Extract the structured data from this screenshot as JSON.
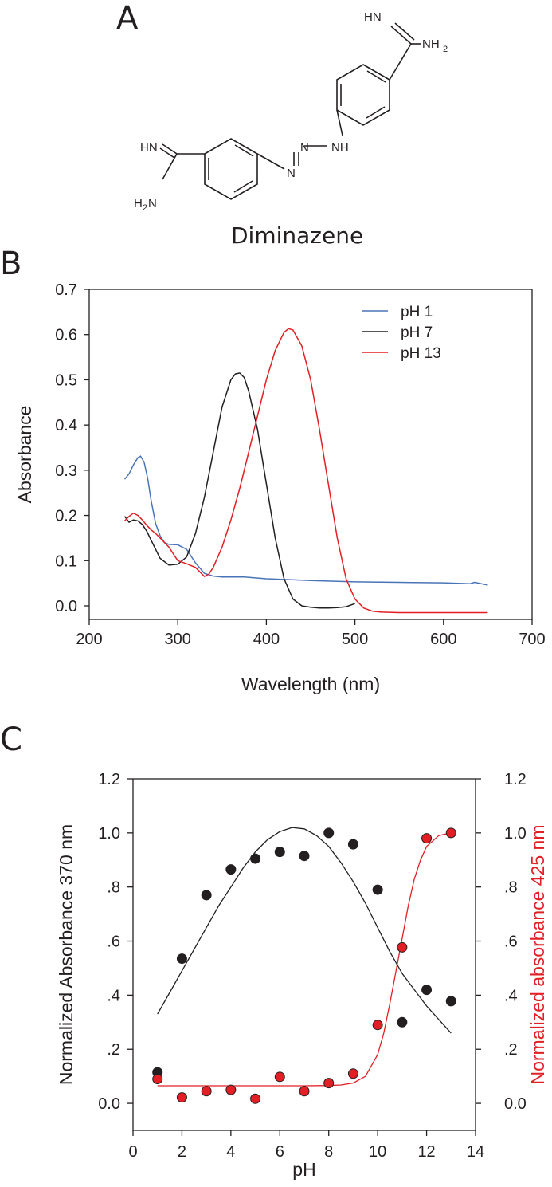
{
  "panels": {
    "a": "A",
    "b": "B",
    "c": "C"
  },
  "molecule": {
    "name": "Diminazene",
    "atoms": {
      "top_imine": "HN",
      "top_amine_n": "NH",
      "top_amine_sub": "2",
      "left_imine": "HN",
      "left_amine_h": "H",
      "left_amine_sub": "2",
      "left_amine_n": "N",
      "azo_n1": "N",
      "azo_n2": "N",
      "bridge_nh": "NH"
    }
  },
  "chart_data": [
    {
      "type": "line",
      "title": "",
      "xlabel": "Wavelength (nm)",
      "ylabel": "Absorbance",
      "xlim": [
        200,
        700
      ],
      "ylim": [
        -0.03,
        0.7
      ],
      "xticks": [
        200,
        300,
        400,
        500,
        600,
        700
      ],
      "yticks": [
        0.0,
        0.1,
        0.2,
        0.3,
        0.4,
        0.5,
        0.6,
        0.7
      ],
      "ytick_labels": [
        "0.0",
        "0.1",
        "0.2",
        "0.3",
        "0.4",
        "0.5",
        "0.6",
        "0.7"
      ],
      "grid": false,
      "legend_position": "top-right",
      "series": [
        {
          "name": "pH 1",
          "color": "#4a74b8",
          "x": [
            240,
            245,
            250,
            255,
            258,
            262,
            266,
            270,
            275,
            280,
            285,
            290,
            300,
            310,
            320,
            330,
            340,
            350,
            375,
            400,
            450,
            500,
            550,
            600,
            630,
            635,
            640,
            650
          ],
          "y": [
            0.28,
            0.292,
            0.312,
            0.328,
            0.331,
            0.318,
            0.282,
            0.232,
            0.182,
            0.155,
            0.14,
            0.136,
            0.135,
            0.125,
            0.095,
            0.072,
            0.066,
            0.064,
            0.064,
            0.06,
            0.056,
            0.053,
            0.052,
            0.051,
            0.049,
            0.052,
            0.05,
            0.046
          ]
        },
        {
          "name": "pH 7",
          "color": "#231f20",
          "x": [
            240,
            245,
            250,
            255,
            260,
            265,
            270,
            275,
            280,
            290,
            300,
            310,
            320,
            330,
            340,
            350,
            360,
            365,
            370,
            375,
            380,
            390,
            400,
            410,
            420,
            430,
            440,
            450,
            460,
            470,
            480,
            490,
            500
          ],
          "y": [
            0.198,
            0.185,
            0.19,
            0.188,
            0.18,
            0.165,
            0.145,
            0.125,
            0.105,
            0.09,
            0.092,
            0.108,
            0.16,
            0.24,
            0.34,
            0.44,
            0.5,
            0.513,
            0.515,
            0.505,
            0.475,
            0.39,
            0.27,
            0.15,
            0.06,
            0.015,
            0.0,
            -0.003,
            -0.005,
            -0.005,
            -0.004,
            -0.002,
            0.005
          ]
        },
        {
          "name": "pH 13",
          "color": "#e31e24",
          "x": [
            240,
            245,
            250,
            255,
            260,
            265,
            270,
            275,
            280,
            290,
            300,
            310,
            320,
            330,
            335,
            340,
            350,
            360,
            370,
            380,
            390,
            400,
            410,
            420,
            425,
            430,
            440,
            450,
            460,
            470,
            480,
            490,
            500,
            510,
            520,
            530,
            550,
            600,
            650
          ],
          "y": [
            0.188,
            0.198,
            0.205,
            0.2,
            0.19,
            0.178,
            0.168,
            0.16,
            0.15,
            0.13,
            0.1,
            0.093,
            0.085,
            0.065,
            0.07,
            0.085,
            0.13,
            0.19,
            0.26,
            0.34,
            0.42,
            0.5,
            0.565,
            0.605,
            0.613,
            0.61,
            0.575,
            0.5,
            0.39,
            0.27,
            0.15,
            0.06,
            0.015,
            -0.005,
            -0.012,
            -0.014,
            -0.015,
            -0.015,
            -0.015
          ]
        }
      ]
    },
    {
      "type": "scatter",
      "title": "",
      "xlabel": "pH",
      "ylabel": "Normalized Absorbance 370 nm",
      "y2label": "Normalized absorbance 425 nm",
      "xlim": [
        0,
        14
      ],
      "ylim": [
        -0.1,
        1.2
      ],
      "y2lim": [
        -0.1,
        1.2
      ],
      "xticks": [
        0,
        2,
        4,
        6,
        8,
        10,
        12,
        14
      ],
      "yticks": [
        0.0,
        0.2,
        0.4,
        0.6,
        0.8,
        1.0,
        1.2
      ],
      "ytick_labels": [
        "0.0",
        ".2",
        ".4",
        ".6",
        ".8",
        "1.0",
        "1.2"
      ],
      "grid": false,
      "series": [
        {
          "name": "370 nm points",
          "axis": "left",
          "color": "#231f20",
          "x": [
            1,
            2,
            3,
            4,
            5,
            6,
            7,
            8,
            9,
            10,
            11,
            12,
            13
          ],
          "y": [
            0.115,
            0.535,
            0.77,
            0.865,
            0.905,
            0.93,
            0.915,
            1.0,
            0.958,
            0.79,
            0.3,
            0.42,
            0.378
          ]
        },
        {
          "name": "370 nm fit",
          "axis": "left",
          "color": "#231f20",
          "x": [
            1,
            1.5,
            2,
            2.5,
            3,
            3.5,
            4,
            4.5,
            5,
            5.5,
            6,
            6.5,
            7,
            7.5,
            8,
            8.5,
            9,
            9.5,
            10,
            10.5,
            11,
            11.5,
            12,
            12.5,
            13
          ],
          "y": [
            0.33,
            0.41,
            0.49,
            0.57,
            0.65,
            0.73,
            0.8,
            0.87,
            0.93,
            0.975,
            1.005,
            1.02,
            1.015,
            0.99,
            0.95,
            0.89,
            0.82,
            0.74,
            0.65,
            0.56,
            0.48,
            0.42,
            0.36,
            0.31,
            0.26
          ]
        },
        {
          "name": "425 nm points",
          "axis": "right",
          "color": "#e31e24",
          "x": [
            1,
            2,
            3,
            4,
            5,
            6,
            7,
            8,
            9,
            10,
            11,
            12,
            13
          ],
          "y": [
            0.09,
            0.022,
            0.045,
            0.05,
            0.017,
            0.098,
            0.045,
            0.075,
            0.11,
            0.29,
            0.577,
            0.98,
            1.0
          ]
        },
        {
          "name": "425 nm fit",
          "axis": "right",
          "color": "#e31e24",
          "x": [
            1,
            2,
            3,
            4,
            5,
            6,
            7,
            8,
            8.5,
            9,
            9.5,
            10,
            10.25,
            10.5,
            10.75,
            11,
            11.25,
            11.5,
            11.75,
            12,
            12.5,
            13
          ],
          "y": [
            0.065,
            0.065,
            0.065,
            0.065,
            0.065,
            0.065,
            0.065,
            0.066,
            0.068,
            0.075,
            0.1,
            0.18,
            0.26,
            0.37,
            0.49,
            0.61,
            0.73,
            0.83,
            0.9,
            0.95,
            0.99,
            1.0
          ]
        }
      ]
    }
  ]
}
